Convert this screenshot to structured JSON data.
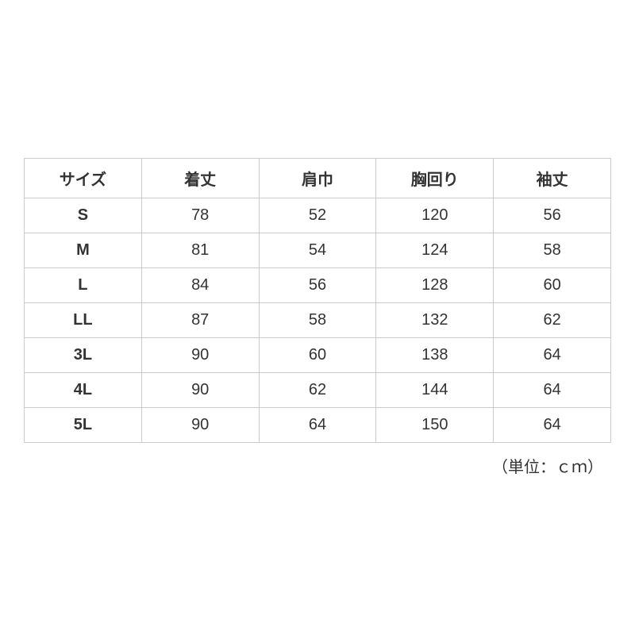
{
  "size_table": {
    "type": "table",
    "columns": [
      "サイズ",
      "着丈",
      "肩巾",
      "胸回り",
      "袖丈"
    ],
    "rows": [
      {
        "label": "S",
        "values": [
          "78",
          "52",
          "120",
          "56"
        ]
      },
      {
        "label": "M",
        "values": [
          "81",
          "54",
          "124",
          "58"
        ]
      },
      {
        "label": "L",
        "values": [
          "84",
          "56",
          "128",
          "60"
        ]
      },
      {
        "label": "LL",
        "values": [
          "87",
          "58",
          "132",
          "62"
        ]
      },
      {
        "label": "3L",
        "values": [
          "90",
          "60",
          "138",
          "64"
        ]
      },
      {
        "label": "4L",
        "values": [
          "90",
          "62",
          "144",
          "64"
        ]
      },
      {
        "label": "5L",
        "values": [
          "90",
          "64",
          "150",
          "64"
        ]
      }
    ],
    "unit_note": "（単位：ｃｍ）",
    "border_color": "#cccccc",
    "text_color": "#333333",
    "background_color": "#ffffff",
    "header_fontsize": 20,
    "cell_fontsize": 20,
    "header_fontweight": "bold",
    "rowlabel_fontweight": "bold"
  }
}
